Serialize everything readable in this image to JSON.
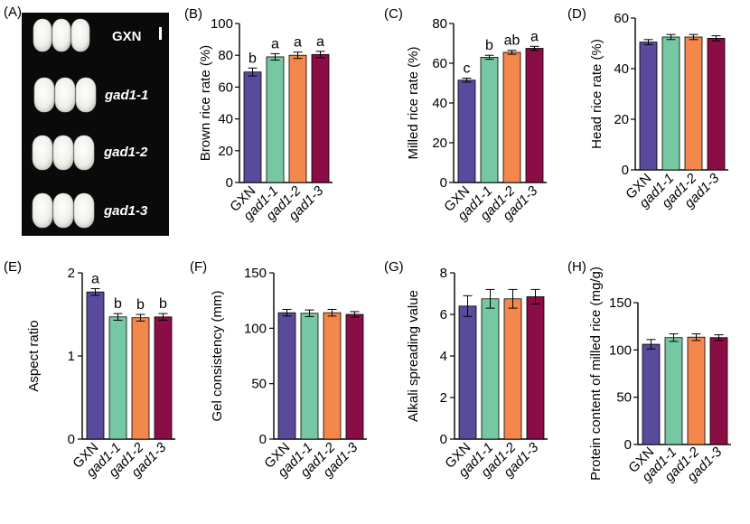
{
  "figure": {
    "photo_panel": {
      "label": "(A)",
      "rows": [
        "GXN",
        "gad1-1",
        "gad1-2",
        "gad1-3"
      ],
      "background": "#0a0a0a"
    },
    "colors": [
      "#5a4a9c",
      "#76c8a2",
      "#f4874c",
      "#8b0d45"
    ]
  },
  "chart_data": [
    {
      "panel": "(B)",
      "type": "bar",
      "categories": [
        "GXN",
        "gad1-1",
        "gad1-2",
        "gad1-3"
      ],
      "values": [
        69.5,
        79,
        80,
        80.5
      ],
      "errors": [
        2.5,
        2,
        2,
        2
      ],
      "letters": [
        "b",
        "a",
        "a",
        "a"
      ],
      "ylabel": "Brown rice rate (%)",
      "ylim": [
        0,
        100
      ],
      "yticks": [
        0,
        20,
        40,
        60,
        80,
        100
      ]
    },
    {
      "panel": "(C)",
      "type": "bar",
      "categories": [
        "GXN",
        "gad1-1",
        "gad1-2",
        "gad1-3"
      ],
      "values": [
        51.5,
        63,
        65.5,
        67.5
      ],
      "errors": [
        1,
        1,
        1,
        1
      ],
      "letters": [
        "c",
        "b",
        "ab",
        "a"
      ],
      "ylabel": "Milled rice rate (%)",
      "ylim": [
        0,
        80
      ],
      "yticks": [
        0,
        20,
        40,
        60,
        80
      ]
    },
    {
      "panel": "(D)",
      "type": "bar",
      "categories": [
        "GXN",
        "gad1-1",
        "gad1-2",
        "gad1-3"
      ],
      "values": [
        50.5,
        52.5,
        52.5,
        52
      ],
      "errors": [
        1,
        1,
        1,
        1
      ],
      "letters": [],
      "ylabel": "Head rice rate (%)",
      "ylim": [
        0,
        60
      ],
      "yticks": [
        0,
        20,
        40,
        60
      ]
    },
    {
      "panel": "(E)",
      "type": "bar",
      "categories": [
        "GXN",
        "gad1-1",
        "gad1-2",
        "gad1-3"
      ],
      "values": [
        1.77,
        1.47,
        1.46,
        1.47
      ],
      "errors": [
        0.04,
        0.04,
        0.04,
        0.04
      ],
      "letters": [
        "a",
        "b",
        "b",
        "b"
      ],
      "ylabel": "Aspect ratio",
      "ylim": [
        0,
        2
      ],
      "yticks": [
        0,
        1,
        2
      ]
    },
    {
      "panel": "(F)",
      "type": "bar",
      "categories": [
        "GXN",
        "gad1-1",
        "gad1-2",
        "gad1-3"
      ],
      "values": [
        114,
        113.5,
        114,
        112.5
      ],
      "errors": [
        3,
        3,
        3,
        2.5
      ],
      "letters": [],
      "ylabel": "Gel consistency (mm)",
      "ylim": [
        0,
        150
      ],
      "yticks": [
        0,
        50,
        100,
        150
      ]
    },
    {
      "panel": "(G)",
      "type": "bar",
      "categories": [
        "GXN",
        "gad1-1",
        "gad1-2",
        "gad1-3"
      ],
      "values": [
        6.4,
        6.75,
        6.75,
        6.85
      ],
      "errors": [
        0.5,
        0.45,
        0.45,
        0.35
      ],
      "letters": [],
      "ylabel": "Alkali spreading value",
      "ylim": [
        0,
        8
      ],
      "yticks": [
        0,
        2,
        4,
        6,
        8
      ]
    },
    {
      "panel": "(H)",
      "type": "bar",
      "categories": [
        "GXN",
        "gad1-1",
        "gad1-2",
        "gad1-3"
      ],
      "values": [
        106,
        113,
        113.5,
        113
      ],
      "errors": [
        5,
        4,
        3.5,
        3
      ],
      "letters": [],
      "ylabel": "Protein content of milled rice (mg/g)",
      "ylim": [
        0,
        150
      ],
      "yticks": [
        0,
        50,
        100,
        150
      ]
    }
  ]
}
